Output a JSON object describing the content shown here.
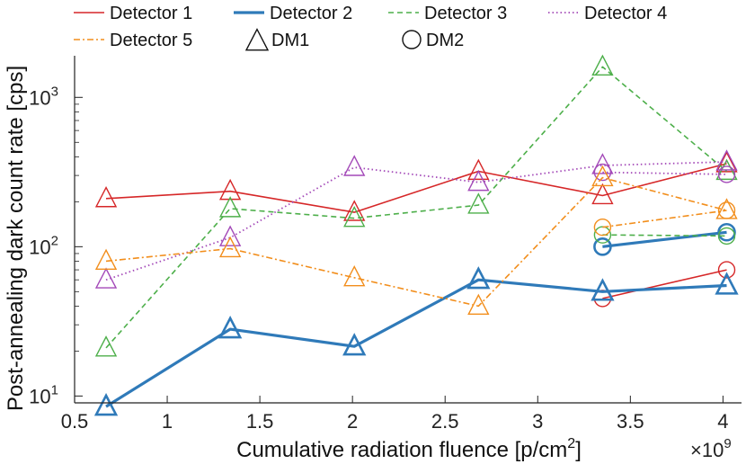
{
  "chart_data": {
    "type": "line",
    "title": "",
    "xlabel": "Cumulative radiation fluence [p/cm",
    "xlabel_sup": "2",
    "xlabel_end": "]",
    "ylabel": "Post-annealing dark count rate [cps]",
    "x_multiplier_base": "×10",
    "x_multiplier_exp": "9",
    "xlim": [
      0.5,
      4.1
    ],
    "ylim": [
      9,
      1900
    ],
    "yscale": "log",
    "x_ticks": [
      0.5,
      1,
      1.5,
      2,
      2.5,
      3,
      3.5,
      4
    ],
    "x_tick_labels": [
      "0.5",
      "1",
      "1.5",
      "2",
      "2.5",
      "3",
      "3.5",
      "4"
    ],
    "y_ticks": [
      10,
      100,
      1000
    ],
    "y_tick_base": "10",
    "y_tick_exps": [
      "1",
      "2",
      "3"
    ],
    "legend_position": "top",
    "series": [
      {
        "name": "Detector 1",
        "color": "#d62728",
        "style": "solid",
        "dm1_x": [
          0.67,
          1.34,
          2.01,
          2.68,
          3.35,
          4.02
        ],
        "dm1_y": [
          210,
          235,
          170,
          320,
          220,
          360
        ],
        "dm2_x": [
          3.35,
          4.02
        ],
        "dm2_y": [
          45,
          70
        ]
      },
      {
        "name": "Detector 2",
        "color": "#2f7ab9",
        "style": "thick",
        "dm1_x": [
          0.67,
          1.34,
          2.01,
          2.68,
          3.35,
          4.02
        ],
        "dm1_y": [
          8.5,
          28,
          21.5,
          60,
          50,
          55
        ],
        "dm2_x": [
          3.35,
          4.02
        ],
        "dm2_y": [
          100,
          125
        ]
      },
      {
        "name": "Detector 3",
        "color": "#4daf4a",
        "style": "dashed",
        "dm1_x": [
          0.67,
          1.34,
          2.01,
          2.68,
          3.35,
          4.02
        ],
        "dm1_y": [
          21,
          180,
          155,
          190,
          1600,
          320
        ],
        "dm2_x": [
          3.35,
          4.02
        ],
        "dm2_y": [
          120,
          118
        ]
      },
      {
        "name": "Detector 4",
        "color": "#a349b8",
        "style": "dotted",
        "dm1_x": [
          0.67,
          1.34,
          2.01,
          2.68,
          3.35,
          4.02
        ],
        "dm1_y": [
          60,
          115,
          340,
          270,
          350,
          370
        ],
        "dm2_x": [
          3.35,
          4.02
        ],
        "dm2_y": [
          315,
          305
        ]
      },
      {
        "name": "Detector 5",
        "color": "#f28e1c",
        "style": "dashdot",
        "dm1_x": [
          0.67,
          1.34,
          2.01,
          2.68,
          3.35,
          4.02
        ],
        "dm1_y": [
          80,
          97,
          62,
          40,
          290,
          175
        ],
        "dm2_x": [
          3.35,
          4.02
        ],
        "dm2_y": [
          135,
          175
        ]
      }
    ],
    "marker_legend": [
      {
        "name": "DM1",
        "marker": "triangle"
      },
      {
        "name": "DM2",
        "marker": "circle"
      }
    ]
  }
}
